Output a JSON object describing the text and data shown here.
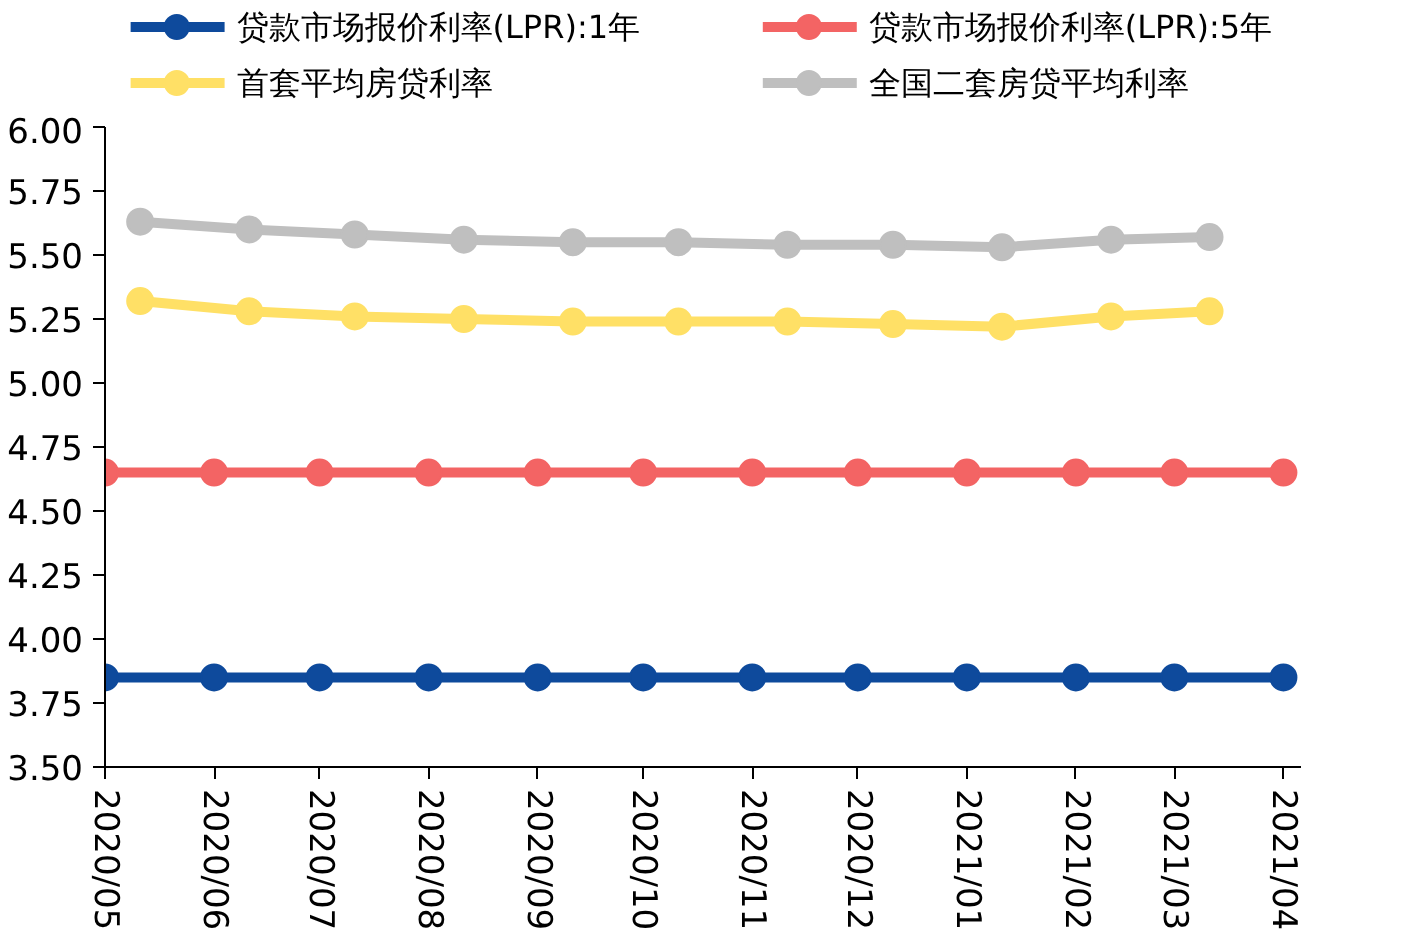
{
  "chart_data": {
    "type": "line",
    "xticks": [
      {
        "value": "2020-05-01",
        "label": "2020/05"
      },
      {
        "value": "2020-06-01",
        "label": "2020/06"
      },
      {
        "value": "2020-07-01",
        "label": "2020/07"
      },
      {
        "value": "2020-08-01",
        "label": "2020/08"
      },
      {
        "value": "2020-09-01",
        "label": "2020/09"
      },
      {
        "value": "2020-10-01",
        "label": "2020/10"
      },
      {
        "value": "2020-11-01",
        "label": "2020/11"
      },
      {
        "value": "2020-12-01",
        "label": "2020/12"
      },
      {
        "value": "2021-01-01",
        "label": "2021/01"
      },
      {
        "value": "2021-02-01",
        "label": "2021/02"
      },
      {
        "value": "2021-03-01",
        "label": "2021/03"
      },
      {
        "value": "2021-04-01",
        "label": "2021/04"
      }
    ],
    "xlim": [
      "2020-05-01",
      "2021-04-06"
    ],
    "ylim": [
      3.5,
      6.0
    ],
    "yticks": [
      {
        "value": 3.5,
        "label": "3.50"
      },
      {
        "value": 3.75,
        "label": "3.75"
      },
      {
        "value": 4.0,
        "label": "4.00"
      },
      {
        "value": 4.25,
        "label": "4.25"
      },
      {
        "value": 4.5,
        "label": "4.50"
      },
      {
        "value": 4.75,
        "label": "4.75"
      },
      {
        "value": 5.0,
        "label": "5.00"
      },
      {
        "value": 5.25,
        "label": "5.25"
      },
      {
        "value": 5.5,
        "label": "5.50"
      },
      {
        "value": 5.75,
        "label": "5.75"
      },
      {
        "value": 6.0,
        "label": "6.00"
      }
    ],
    "grid": false,
    "legend": "top",
    "marker": "circle",
    "line_style": "solid",
    "series": [
      {
        "name": "贷款市场报价利率(LPR):1年",
        "color": "#0e4a9c",
        "x": [
          "2020-05-01",
          "2020-06-01",
          "2020-07-01",
          "2020-08-01",
          "2020-09-01",
          "2020-10-01",
          "2020-11-01",
          "2020-12-01",
          "2021-01-01",
          "2021-02-01",
          "2021-03-01",
          "2021-04-01"
        ],
        "values": [
          3.85,
          3.85,
          3.85,
          3.85,
          3.85,
          3.85,
          3.85,
          3.85,
          3.85,
          3.85,
          3.85,
          3.85
        ]
      },
      {
        "name": "贷款市场报价利率(LPR):5年",
        "color": "#f36464",
        "x": [
          "2020-05-01",
          "2020-06-01",
          "2020-07-01",
          "2020-08-01",
          "2020-09-01",
          "2020-10-01",
          "2020-11-01",
          "2020-12-01",
          "2021-01-01",
          "2021-02-01",
          "2021-03-01",
          "2021-04-01"
        ],
        "values": [
          4.65,
          4.65,
          4.65,
          4.65,
          4.65,
          4.65,
          4.65,
          4.65,
          4.65,
          4.65,
          4.65,
          4.65
        ]
      },
      {
        "name": "首套平均房贷利率",
        "color": "#ffe066",
        "x": [
          "2020-05-11",
          "2020-06-11",
          "2020-07-11",
          "2020-08-11",
          "2020-09-11",
          "2020-10-11",
          "2020-11-11",
          "2020-12-11",
          "2021-01-11",
          "2021-02-11",
          "2021-03-11"
        ],
        "values": [
          5.32,
          5.28,
          5.26,
          5.25,
          5.24,
          5.24,
          5.24,
          5.23,
          5.22,
          5.26,
          5.28
        ]
      },
      {
        "name": "全国二套房贷平均利率",
        "color": "#bfbfbf",
        "x": [
          "2020-05-11",
          "2020-06-11",
          "2020-07-11",
          "2020-08-11",
          "2020-09-11",
          "2020-10-11",
          "2020-11-11",
          "2020-12-11",
          "2021-01-11",
          "2021-02-11",
          "2021-03-11"
        ],
        "values": [
          5.63,
          5.6,
          5.58,
          5.56,
          5.55,
          5.55,
          5.54,
          5.54,
          5.53,
          5.56,
          5.57
        ]
      }
    ]
  }
}
